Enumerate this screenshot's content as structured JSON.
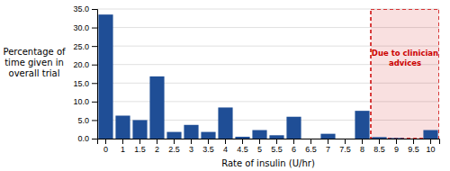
{
  "chart_data": {
    "type": "bar",
    "categories": [
      "0",
      "1",
      "1.5",
      "2",
      "2.5",
      "3",
      "3.5",
      "4",
      "4.5",
      "5",
      "5.5",
      "6",
      "6.5",
      "7",
      "7.5",
      "8",
      "8.5",
      "9",
      "9.5",
      "10"
    ],
    "values": [
      33.5,
      6.2,
      5.0,
      16.8,
      1.8,
      3.7,
      1.8,
      8.4,
      0.5,
      2.3,
      0.9,
      5.9,
      0.0,
      1.3,
      0.0,
      7.5,
      0.4,
      0.15,
      0.0,
      2.3
    ],
    "color": "#1F4E96",
    "x_label": "Rate of insulin (U/hr)",
    "y_label": "Percentage of\ntime given in\noverall trial",
    "ylim": [
      0,
      35.0
    ],
    "yticks": [
      {
        "value": 0.0,
        "label": "0.0"
      },
      {
        "value": 5.0,
        "label": "5.0"
      },
      {
        "value": 10.0,
        "label": "10.0"
      },
      {
        "value": 15.0,
        "label": "15.0"
      },
      {
        "value": 20.0,
        "label": "20.0"
      },
      {
        "value": 25.0,
        "label": "25.0"
      },
      {
        "value": 30.0,
        "label": "30.0"
      },
      {
        "value": 35.0,
        "label": "35.0"
      }
    ],
    "grid": true,
    "annotation": {
      "text": "Due to clinician\nadvices",
      "color": "#CC0000",
      "span": [
        "8.5",
        "10"
      ]
    }
  }
}
